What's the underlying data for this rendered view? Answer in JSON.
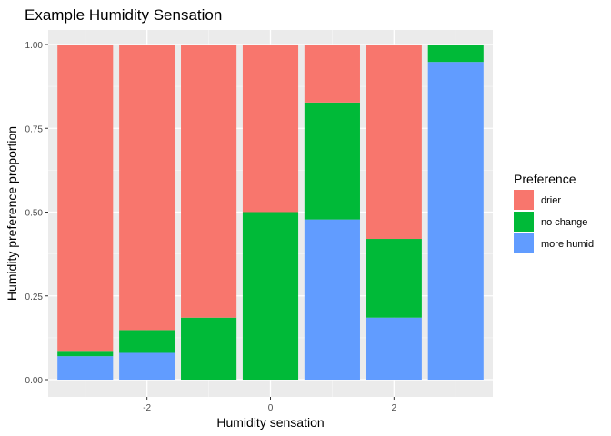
{
  "chart_data": {
    "type": "bar",
    "stacked": true,
    "title": "Example Humidity Sensation",
    "xlabel": "Humidity sensation",
    "ylabel": "Humidity preference proportion",
    "x": [
      -3,
      -2,
      -1,
      0,
      1,
      2,
      3
    ],
    "xlim": [
      -3.6,
      3.6
    ],
    "xticks": [
      -2,
      0,
      2
    ],
    "xtick_labels": [
      "-2",
      "0",
      "2"
    ],
    "ylim": [
      0,
      1
    ],
    "yticks": [
      0,
      0.25,
      0.5,
      0.75,
      1.0
    ],
    "ytick_labels": [
      "0.00",
      "0.25",
      "0.50",
      "0.75",
      "1.00"
    ],
    "grid": true,
    "legend": {
      "title": "Preference",
      "placement": "right"
    },
    "series": [
      {
        "name": "more humid",
        "color": "#619CFF",
        "values": [
          0.07,
          0.08,
          0.0,
          0.0,
          0.478,
          0.185,
          0.948
        ]
      },
      {
        "name": "no change",
        "color": "#00BA38",
        "values": [
          0.016,
          0.068,
          0.185,
          0.5,
          0.349,
          0.235,
          0.052
        ]
      },
      {
        "name": "drier",
        "color": "#F8766D",
        "values": [
          0.914,
          0.852,
          0.815,
          0.5,
          0.173,
          0.58,
          0.0
        ]
      }
    ],
    "legend_order": [
      "drier",
      "no change",
      "more humid"
    ]
  }
}
